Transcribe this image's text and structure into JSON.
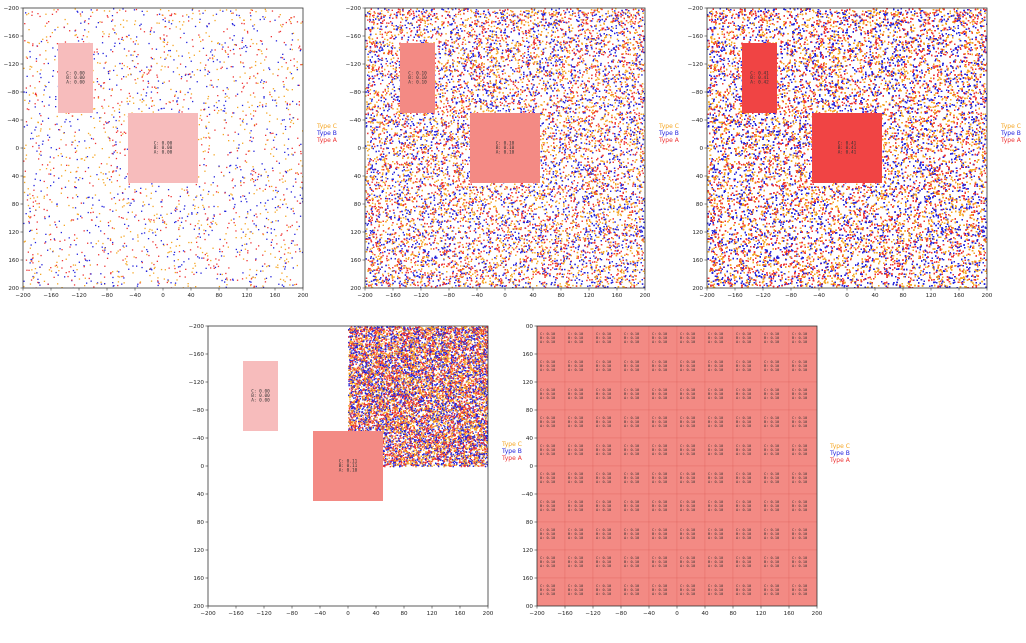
{
  "figure": {
    "colors": {
      "type_c": "#f5a623",
      "type_b": "#2222dd",
      "type_a": "#ee3333",
      "frame": "#333333"
    },
    "tick_values": [
      -200,
      -160,
      -120,
      -80,
      -40,
      0,
      40,
      80,
      120,
      160,
      200
    ]
  },
  "chart_data": [
    {
      "type": "scatter",
      "xlim": [
        -200,
        200
      ],
      "ylim": [
        -200,
        200
      ],
      "xticks": [
        "−200",
        "−160",
        "−120",
        "−80",
        "−40",
        "0",
        "40",
        "80",
        "120",
        "160",
        "200"
      ],
      "yticks": [
        "−200",
        "−160",
        "−120",
        "−80",
        "−40",
        "0",
        "40",
        "80",
        "120",
        "160",
        "200"
      ],
      "legend": {
        "placement": "right",
        "entries": [
          "Type C",
          "Type B",
          "Type A"
        ]
      },
      "point_density": 0.03,
      "points_region": {
        "x": [
          -200,
          200
        ],
        "y": [
          -200,
          200
        ]
      },
      "regions": [
        {
          "x": [
            -150,
            -100
          ],
          "y": [
            50,
            150
          ],
          "fill": "#f7bcbc",
          "lines": [
            "C: 0.00",
            "B: 0.00",
            "A: 0.00"
          ]
        },
        {
          "x": [
            -50,
            50
          ],
          "y": [
            -50,
            50
          ],
          "fill": "#f7bcbc",
          "lines": [
            "C: 0.00",
            "B: 0.00",
            "A: 0.00"
          ]
        }
      ]
    },
    {
      "type": "scatter",
      "xlim": [
        -200,
        200
      ],
      "ylim": [
        -200,
        200
      ],
      "xticks": [
        "−200",
        "−160",
        "−120",
        "−80",
        "−40",
        "0",
        "40",
        "80",
        "120",
        "160",
        "200"
      ],
      "yticks": [
        "−200",
        "−160",
        "−120",
        "−80",
        "−40",
        "0",
        "40",
        "80",
        "120",
        "160",
        "200"
      ],
      "legend": {
        "placement": "right",
        "entries": [
          "Type C",
          "Type B",
          "Type A"
        ]
      },
      "point_density": 0.35,
      "points_region": {
        "x": [
          -200,
          200
        ],
        "y": [
          -200,
          200
        ]
      },
      "regions": [
        {
          "x": [
            -150,
            -100
          ],
          "y": [
            50,
            150
          ],
          "fill": "#f38a84",
          "lines": [
            "C: 0.10",
            "B: 0.10",
            "A: 0.10"
          ]
        },
        {
          "x": [
            -50,
            50
          ],
          "y": [
            -50,
            50
          ],
          "fill": "#f38a84",
          "lines": [
            "C: 0.10",
            "B: 0.10",
            "A: 0.10"
          ]
        }
      ]
    },
    {
      "type": "scatter",
      "xlim": [
        -200,
        200
      ],
      "ylim": [
        -200,
        200
      ],
      "xticks": [
        "−200",
        "−160",
        "−120",
        "−80",
        "−40",
        "0",
        "40",
        "80",
        "120",
        "160",
        "200"
      ],
      "yticks": [
        "−200",
        "−160",
        "−120",
        "−80",
        "−40",
        "0",
        "40",
        "80",
        "120",
        "160",
        "200"
      ],
      "legend": {
        "placement": "right",
        "entries": [
          "Type C",
          "Type B",
          "Type A"
        ]
      },
      "point_density": 0.85,
      "points_region": {
        "x": [
          -200,
          200
        ],
        "y": [
          -200,
          200
        ]
      },
      "regions": [
        {
          "x": [
            -150,
            -100
          ],
          "y": [
            50,
            150
          ],
          "fill": "#f04444",
          "lines": [
            "C: 0.41",
            "B: 0.41",
            "A: 0.42"
          ]
        },
        {
          "x": [
            -50,
            50
          ],
          "y": [
            -50,
            50
          ],
          "fill": "#f04444",
          "lines": [
            "C: 0.41",
            "B: 0.41",
            "A: 0.41"
          ]
        }
      ]
    },
    {
      "type": "scatter",
      "xlim": [
        -200,
        200
      ],
      "ylim": [
        -200,
        200
      ],
      "xticks": [
        "−200",
        "−160",
        "−120",
        "−80",
        "−40",
        "0",
        "40",
        "80",
        "120",
        "160",
        "200"
      ],
      "yticks": [
        "−200",
        "−160",
        "−120",
        "−80",
        "−40",
        "0",
        "40",
        "80",
        "120",
        "160",
        "200"
      ],
      "legend": {
        "placement": "right",
        "entries": [
          "Type C",
          "Type B",
          "Type A"
        ]
      },
      "point_density": 0.9,
      "points_region": {
        "x": [
          0,
          200
        ],
        "y": [
          0,
          200
        ]
      },
      "regions": [
        {
          "x": [
            -150,
            -100
          ],
          "y": [
            50,
            150
          ],
          "fill": "#f7bcbc",
          "lines": [
            "C: 0.00",
            "B: 0.00",
            "A: 0.00"
          ]
        },
        {
          "x": [
            -50,
            50
          ],
          "y": [
            -50,
            50
          ],
          "fill": "#f38a84",
          "lines": [
            "C: 0.11",
            "B: 0.11",
            "A: 0.10"
          ]
        }
      ]
    },
    {
      "type": "heatmap",
      "xlim": [
        -200,
        200
      ],
      "ylim": [
        -200,
        200
      ],
      "xticks": [
        "−200",
        "−160",
        "−120",
        "−80",
        "−40",
        "0",
        "40",
        "80",
        "120",
        "160",
        "200"
      ],
      "yticks": [
        "00",
        "160",
        "120",
        "80",
        "40",
        "0",
        "−40",
        "80",
        "120",
        "160",
        "00"
      ],
      "legend": {
        "placement": "right",
        "entries": [
          "Type C",
          "Type B",
          "Type A"
        ]
      },
      "grid": {
        "rows": 10,
        "cols": 10,
        "fill": "#f38a84",
        "cell_lines": [
          "C: 0.10",
          "B: 0.10",
          "A: 0.10"
        ]
      }
    }
  ]
}
